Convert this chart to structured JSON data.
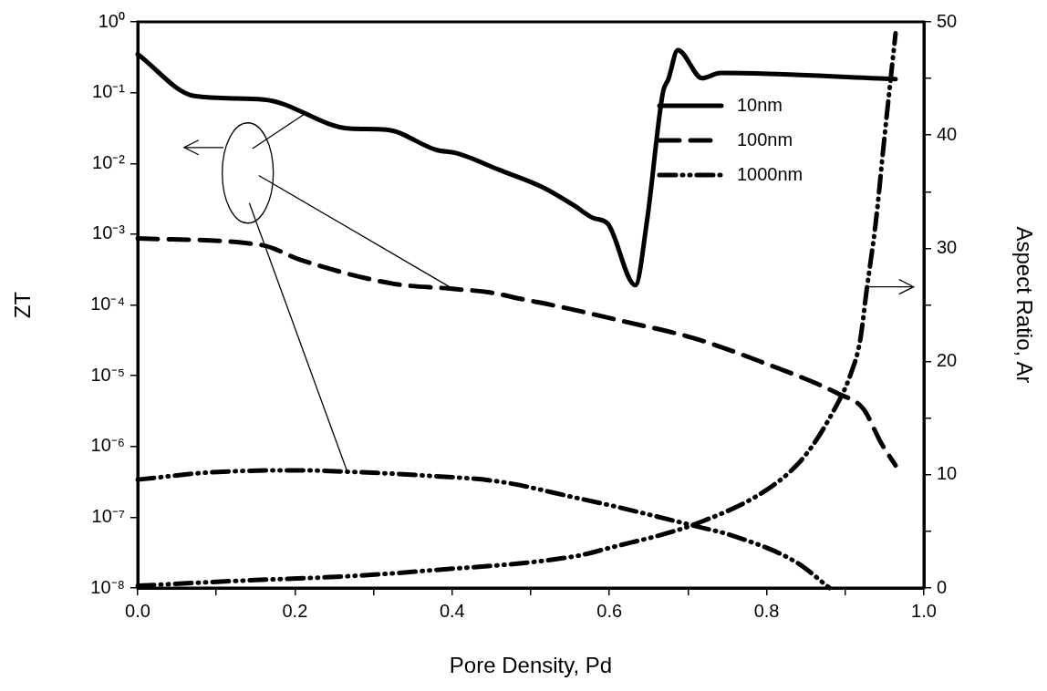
{
  "chart_data": {
    "type": "line",
    "xlabel": "Pore Density, Pd",
    "ylabel": "ZT",
    "y2label": "Aspect Ratio, Ar",
    "log": "y",
    "grid": false,
    "legend": "top right",
    "marker": "none",
    "xlim": [
      0,
      1
    ],
    "xticks": [
      {
        "value": 0,
        "label": "0.0"
      },
      {
        "value": 0.1,
        "label": null
      },
      {
        "value": 0.2,
        "label": "0.2"
      },
      {
        "value": 0.3,
        "label": null
      },
      {
        "value": 0.4,
        "label": "0.4"
      },
      {
        "value": 0.5,
        "label": null
      },
      {
        "value": 0.6,
        "label": "0.6"
      },
      {
        "value": 0.7,
        "label": null
      },
      {
        "value": 0.8,
        "label": "0.8"
      },
      {
        "value": 0.9,
        "label": null
      },
      {
        "value": 1,
        "label": "1.0"
      }
    ],
    "ylim": [
      1e-08,
      1
    ],
    "yticks": [
      {
        "value": 1e-08,
        "label": "10⁻⁸"
      },
      {
        "value": 1e-07,
        "label": "10⁻⁷"
      },
      {
        "value": 1e-06,
        "label": "10⁻⁶"
      },
      {
        "value": 1e-05,
        "label": "10⁻⁵"
      },
      {
        "value": 0.0001,
        "label": "10⁻⁴"
      },
      {
        "value": 0.001,
        "label": "10⁻³"
      },
      {
        "value": 0.01,
        "label": "10⁻²"
      },
      {
        "value": 0.1,
        "label": "10⁻¹"
      },
      {
        "value": 1,
        "label": "10⁰"
      }
    ],
    "y2lim": [
      0,
      50
    ],
    "y2ticks": [
      0,
      {
        "value": 5,
        "label": null
      },
      10,
      {
        "value": 15,
        "label": null
      },
      20,
      {
        "value": 25,
        "label": null
      },
      30,
      {
        "value": 35,
        "label": null
      },
      40,
      {
        "value": 45,
        "label": null
      },
      50
    ],
    "series": [
      {
        "name": "10nm",
        "color": "#000000",
        "line_style": "solid",
        "x": [
          0,
          0.072,
          0.16,
          0.27,
          0.316,
          0.38,
          0.405,
          0.46,
          0.517,
          0.556,
          0.579,
          0.598,
          0.633,
          0.648,
          0.668,
          0.675,
          0.687,
          0.718,
          0.741,
          0.964
        ],
        "values": [
          0.35,
          0.09,
          0.08,
          0.031,
          0.03,
          0.0155,
          0.014,
          0.0081,
          0.0045,
          0.0025,
          0.0017,
          0.0014,
          0.00019,
          0.0016,
          0.1,
          0.155,
          0.4,
          0.16,
          0.19,
          0.155
        ]
      },
      {
        "name": "100nm",
        "color": "#000000",
        "line_style": "dashed",
        "x": [
          0,
          0.158,
          0.208,
          0.324,
          0.397,
          0.448,
          0.49,
          0.532,
          0.617,
          0.707,
          0.791,
          0.892,
          0.923,
          0.946,
          0.964
        ],
        "values": [
          0.00087,
          0.0007,
          0.00043,
          0.0002,
          0.00017,
          0.00015,
          0.00012,
          9.7e-05,
          5.9e-05,
          3.4e-05,
          1.6e-05,
          5.5e-06,
          3.4e-06,
          1.1e-06,
          5.4e-07
        ]
      },
      {
        "name": "1000nm",
        "color": "#000000",
        "line_style": "dotted",
        "x": [
          0,
          0.092,
          0.2,
          0.266,
          0.362,
          0.459,
          0.556,
          0.598,
          0.707,
          0.761,
          0.838,
          0.88
        ],
        "values": [
          3.4e-07,
          4.3e-07,
          4.6e-07,
          4.4e-07,
          3.9e-07,
          3.2e-07,
          1.9e-07,
          1.5e-07,
          7.6e-08,
          5.3e-08,
          2.3e-08,
          1e-08
        ]
      },
      {
        "color": "#000000",
        "line_style": "dotted",
        "axis": "y2",
        "x": [
          0,
          0.13,
          0.27,
          0.362,
          0.556,
          0.598,
          0.715,
          0.807,
          0.849,
          0.884,
          0.907,
          0.919,
          0.927,
          0.939,
          0.95,
          0.964
        ],
        "values": [
          0.2,
          0.64,
          1.05,
          1.5,
          2.8,
          3.5,
          5.8,
          9,
          11.7,
          15.5,
          18.9,
          21.9,
          26.2,
          32.4,
          39.9,
          49
        ]
      }
    ]
  }
}
